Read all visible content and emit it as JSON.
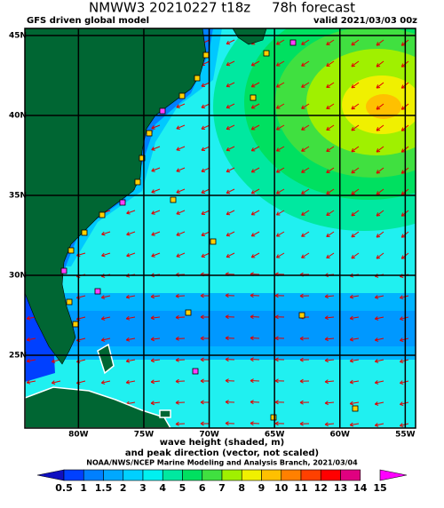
{
  "header": {
    "title": "NMWW3 20210227 t18z     78h forecast",
    "model": "GFS driven global model",
    "valid": "valid 2021/03/03 00z"
  },
  "map": {
    "lat_lines": [
      {
        "value": 45,
        "label": "45N"
      },
      {
        "value": 40,
        "label": "40N"
      },
      {
        "value": 35,
        "label": "35N"
      },
      {
        "value": 30,
        "label": "30N"
      },
      {
        "value": 25,
        "label": "25N"
      }
    ],
    "lon_lines": [
      {
        "value": -80,
        "label": "80W"
      },
      {
        "value": -75,
        "label": "75W"
      },
      {
        "value": -70,
        "label": "70W"
      },
      {
        "value": -65,
        "label": "65W"
      },
      {
        "value": -60,
        "label": "60W"
      },
      {
        "value": -55,
        "label": "55W"
      }
    ]
  },
  "caption": {
    "line1": "wave height (shaded, m)",
    "line2": "and peak direction (vector, not scaled)",
    "credit": "NOAA/NWS/NCEP Marine Modeling and Analysis Branch, 2021/03/04"
  },
  "colorbar": {
    "labels": [
      0.5,
      1,
      1.5,
      2,
      3,
      4,
      5,
      6,
      7,
      8,
      9,
      10,
      11,
      12,
      13,
      14,
      15
    ],
    "colors": [
      "#1010c0",
      "#0040ff",
      "#0080ff",
      "#00a8ff",
      "#00d0ff",
      "#00f0f0",
      "#00e8a0",
      "#00e060",
      "#40e040",
      "#a0f000",
      "#f0f000",
      "#ffc000",
      "#ff8000",
      "#ff4000",
      "#ff0000",
      "#e00080",
      "#ff00ff"
    ]
  }
}
